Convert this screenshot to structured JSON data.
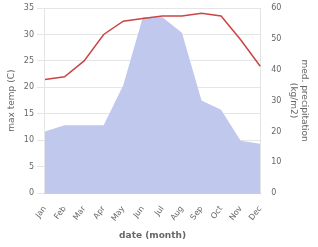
{
  "chart_data": {
    "type": "line",
    "categories": [
      "Jan",
      "Feb",
      "Mar",
      "Apr",
      "May",
      "Jun",
      "Jul",
      "Aug",
      "Sep",
      "Oct",
      "Nov",
      "Dec"
    ],
    "series": [
      {
        "type": "area",
        "color": "#c0c8ee",
        "axis": "y2",
        "values": [
          20.0,
          22.0,
          22.0,
          22.0,
          35.0,
          57.0,
          57.0,
          52.0,
          30.0,
          27.0,
          17.0,
          16.0
        ]
      },
      {
        "type": "line",
        "color": "#cc4444",
        "values": [
          21.5,
          22.0,
          25.0,
          30.0,
          32.5,
          33.0,
          33.5,
          33.5,
          34.0,
          33.5,
          29.0,
          24.0
        ]
      }
    ],
    "xlabel": "date (month)",
    "ylabel": "max temp (C)",
    "y2label": "med. precipitation\n(kg/m2)",
    "ylim": [
      0,
      35
    ],
    "yticks": [
      0,
      5,
      10,
      15,
      20,
      25,
      30,
      35
    ],
    "y2lim": [
      0,
      60
    ],
    "y2ticks": [
      0,
      10,
      20,
      30,
      40,
      50,
      60
    ],
    "grid": true
  }
}
